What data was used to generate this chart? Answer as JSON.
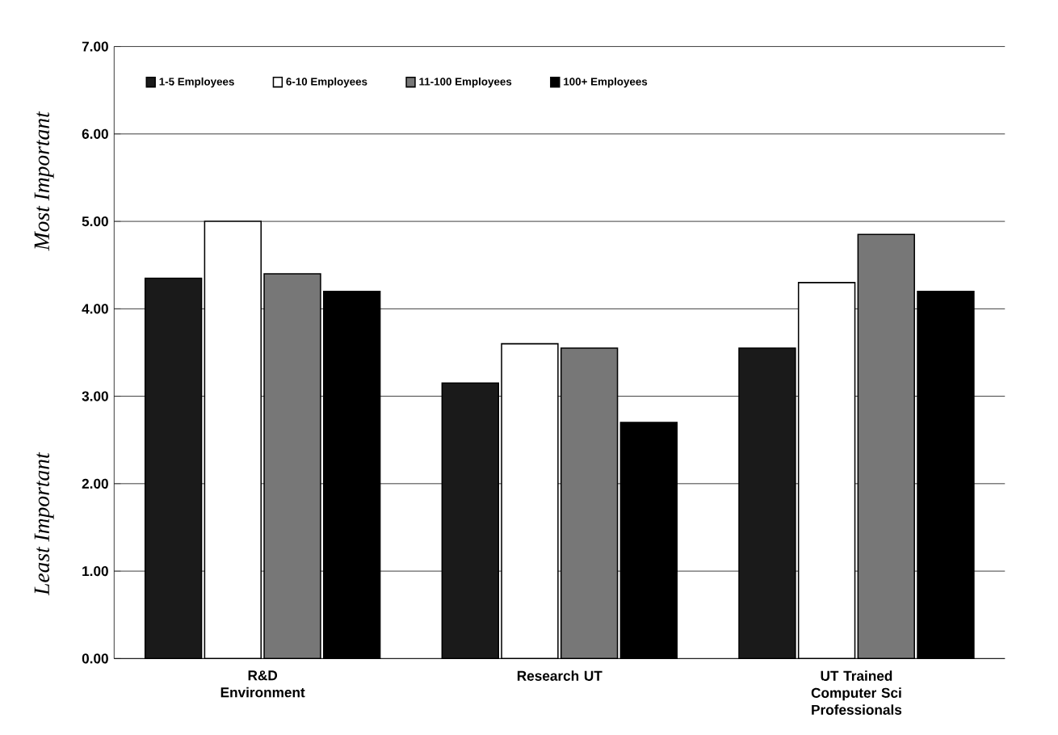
{
  "chart_data": {
    "type": "bar",
    "categories": [
      "R&D Environment",
      "Research UT",
      "UT Trained Computer Sci Professionals"
    ],
    "series": [
      {
        "name": "1-5 Employees",
        "color": "#1a1a1a",
        "values": [
          4.35,
          3.15,
          3.55
        ]
      },
      {
        "name": "6-10 Employees",
        "color": "#ffffff",
        "values": [
          5.0,
          3.6,
          4.3
        ]
      },
      {
        "name": "11-100 Employees",
        "color": "#777777",
        "values": [
          4.4,
          3.55,
          4.85
        ]
      },
      {
        "name": "100+ Employees",
        "color": "#000000",
        "values": [
          4.2,
          2.7,
          4.2
        ]
      }
    ],
    "annotations": [
      "Most Important",
      "Least Important"
    ],
    "ylim": [
      0,
      7
    ],
    "yticks": [
      {
        "value": 0,
        "label": "0.00"
      },
      {
        "value": 1,
        "label": "1.00"
      },
      {
        "value": 2,
        "label": "2.00"
      },
      {
        "value": 3,
        "label": "3.00"
      },
      {
        "value": 4,
        "label": "4.00"
      },
      {
        "value": 5,
        "label": "5.00"
      },
      {
        "value": 6,
        "label": "6.00"
      },
      {
        "value": 7,
        "label": "7.00"
      }
    ],
    "grid": "y",
    "legend": "top"
  }
}
